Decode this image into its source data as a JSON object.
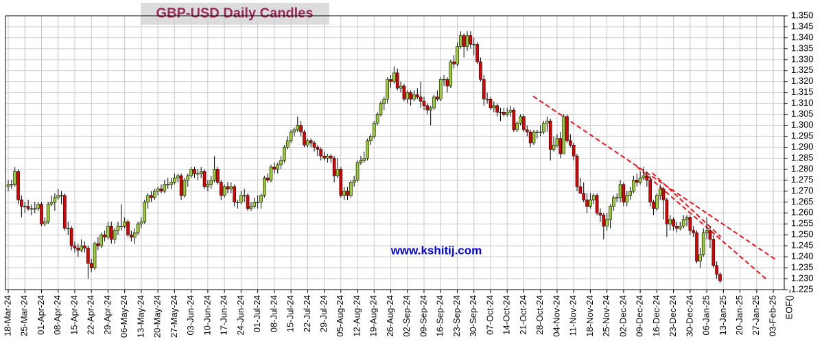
{
  "chart_data": {
    "type": "candlestick",
    "title": "GBP-USD Daily Candles",
    "watermark": "www.kshitij.com",
    "categories": [
      "18-Mar-24",
      "25-Mar-24",
      "01-Apr-24",
      "08-Apr-24",
      "15-Apr-24",
      "22-Apr-24",
      "29-Apr-24",
      "06-May-24",
      "13-May-24",
      "20-May-24",
      "27-May-24",
      "03-Jun-24",
      "10-Jun-24",
      "17-Jun-24",
      "24-Jun-24",
      "01-Jul-24",
      "08-Jul-24",
      "15-Jul-24",
      "22-Jul-24",
      "29-Jul-24",
      "05-Aug-24",
      "12-Aug-24",
      "19-Aug-24",
      "26-Aug-24",
      "02-Sep-24",
      "09-Sep-24",
      "16-Sep-24",
      "23-Sep-24",
      "30-Sep-24",
      "07-Oct-24",
      "14-Oct-24",
      "21-Oct-24",
      "28-Oct-24",
      "04-Nov-24",
      "11-Nov-24",
      "18-Nov-24",
      "25-Nov-24",
      "02-Dec-24",
      "09-Dec-24",
      "16-Dec-24",
      "23-Dec-24",
      "30-Dec-24",
      "06-Jan-25",
      "13-Jan-25",
      "20-Jan-25",
      "27-Jan-25",
      "03-Feb-25",
      "EOF()"
    ],
    "ohlc": [
      [
        1.272,
        1.275,
        1.27,
        1.273
      ],
      [
        1.273,
        1.275,
        1.271,
        1.273
      ],
      [
        1.273,
        1.281,
        1.272,
        1.279
      ],
      [
        1.279,
        1.28,
        1.264,
        1.266
      ],
      [
        1.266,
        1.268,
        1.258,
        1.263
      ],
      [
        1.263,
        1.265,
        1.26,
        1.263
      ],
      [
        1.263,
        1.266,
        1.261,
        1.262
      ],
      [
        1.262,
        1.264,
        1.259,
        1.262
      ],
      [
        1.262,
        1.265,
        1.26,
        1.262
      ],
      [
        1.262,
        1.265,
        1.261,
        1.264
      ],
      [
        1.264,
        1.265,
        1.254,
        1.255
      ],
      [
        1.255,
        1.258,
        1.254,
        1.256
      ],
      [
        1.256,
        1.265,
        1.255,
        1.264
      ],
      [
        1.264,
        1.268,
        1.263,
        1.265
      ],
      [
        1.265,
        1.269,
        1.261,
        1.267
      ],
      [
        1.267,
        1.271,
        1.266,
        1.268
      ],
      [
        1.268,
        1.27,
        1.264,
        1.268
      ],
      [
        1.268,
        1.269,
        1.252,
        1.253
      ],
      [
        1.253,
        1.256,
        1.25,
        1.253
      ],
      [
        1.253,
        1.254,
        1.243,
        1.245
      ],
      [
        1.245,
        1.247,
        1.242,
        1.244
      ],
      [
        1.244,
        1.246,
        1.24,
        1.243
      ],
      [
        1.243,
        1.248,
        1.242,
        1.245
      ],
      [
        1.245,
        1.247,
        1.242,
        1.244
      ],
      [
        1.244,
        1.245,
        1.23,
        1.237
      ],
      [
        1.237,
        1.239,
        1.233,
        1.235
      ],
      [
        1.235,
        1.247,
        1.234,
        1.246
      ],
      [
        1.246,
        1.249,
        1.243,
        1.245
      ],
      [
        1.245,
        1.251,
        1.244,
        1.25
      ],
      [
        1.25,
        1.252,
        1.247,
        1.249
      ],
      [
        1.249,
        1.256,
        1.248,
        1.254
      ],
      [
        1.254,
        1.256,
        1.246,
        1.248
      ],
      [
        1.248,
        1.253,
        1.246,
        1.252
      ],
      [
        1.252,
        1.256,
        1.25,
        1.254
      ],
      [
        1.254,
        1.264,
        1.252,
        1.254
      ],
      [
        1.254,
        1.258,
        1.253,
        1.256
      ],
      [
        1.256,
        1.257,
        1.249,
        1.25
      ],
      [
        1.25,
        1.252,
        1.247,
        1.249
      ],
      [
        1.249,
        1.253,
        1.246,
        1.251
      ],
      [
        1.251,
        1.256,
        1.25,
        1.255
      ],
      [
        1.255,
        1.258,
        1.253,
        1.256
      ],
      [
        1.256,
        1.266,
        1.255,
        1.265
      ],
      [
        1.265,
        1.269,
        1.262,
        1.268
      ],
      [
        1.268,
        1.27,
        1.265,
        1.267
      ],
      [
        1.267,
        1.271,
        1.266,
        1.27
      ],
      [
        1.27,
        1.272,
        1.268,
        1.271
      ],
      [
        1.271,
        1.273,
        1.269,
        1.27
      ],
      [
        1.27,
        1.275,
        1.269,
        1.273
      ],
      [
        1.273,
        1.276,
        1.271,
        1.273
      ],
      [
        1.273,
        1.276,
        1.271,
        1.274
      ],
      [
        1.274,
        1.278,
        1.273,
        1.276
      ],
      [
        1.276,
        1.278,
        1.274,
        1.277
      ],
      [
        1.277,
        1.278,
        1.266,
        1.268
      ],
      [
        1.268,
        1.276,
        1.267,
        1.275
      ],
      [
        1.275,
        1.278,
        1.272,
        1.277
      ],
      [
        1.277,
        1.281,
        1.276,
        1.28
      ],
      [
        1.28,
        1.281,
        1.276,
        1.278
      ],
      [
        1.278,
        1.28,
        1.275,
        1.278
      ],
      [
        1.278,
        1.281,
        1.276,
        1.279
      ],
      [
        1.279,
        1.28,
        1.271,
        1.272
      ],
      [
        1.272,
        1.275,
        1.27,
        1.273
      ],
      [
        1.273,
        1.277,
        1.271,
        1.275
      ],
      [
        1.275,
        1.286,
        1.274,
        1.28
      ],
      [
        1.28,
        1.281,
        1.273,
        1.274
      ],
      [
        1.274,
        1.275,
        1.266,
        1.268
      ],
      [
        1.268,
        1.273,
        1.267,
        1.272
      ],
      [
        1.272,
        1.274,
        1.269,
        1.271
      ],
      [
        1.271,
        1.274,
        1.269,
        1.272
      ],
      [
        1.272,
        1.273,
        1.263,
        1.265
      ],
      [
        1.265,
        1.266,
        1.262,
        1.265
      ],
      [
        1.265,
        1.27,
        1.264,
        1.268
      ],
      [
        1.268,
        1.271,
        1.265,
        1.268
      ],
      [
        1.268,
        1.269,
        1.261,
        1.262
      ],
      [
        1.262,
        1.265,
        1.261,
        1.263
      ],
      [
        1.263,
        1.267,
        1.262,
        1.265
      ],
      [
        1.265,
        1.268,
        1.262,
        1.265
      ],
      [
        1.265,
        1.269,
        1.262,
        1.268
      ],
      [
        1.268,
        1.277,
        1.267,
        1.276
      ],
      [
        1.276,
        1.278,
        1.274,
        1.275
      ],
      [
        1.275,
        1.282,
        1.274,
        1.281
      ],
      [
        1.281,
        1.283,
        1.278,
        1.28
      ],
      [
        1.28,
        1.283,
        1.278,
        1.282
      ],
      [
        1.282,
        1.286,
        1.28,
        1.284
      ],
      [
        1.284,
        1.291,
        1.283,
        1.29
      ],
      [
        1.29,
        1.295,
        1.289,
        1.293
      ],
      [
        1.293,
        1.298,
        1.292,
        1.297
      ],
      [
        1.297,
        1.299,
        1.295,
        1.298
      ],
      [
        1.298,
        1.304,
        1.297,
        1.3
      ],
      [
        1.3,
        1.302,
        1.295,
        1.297
      ],
      [
        1.297,
        1.298,
        1.29,
        1.291
      ],
      [
        1.291,
        1.294,
        1.29,
        1.293
      ],
      [
        1.293,
        1.294,
        1.29,
        1.292
      ],
      [
        1.292,
        1.293,
        1.288,
        1.29
      ],
      [
        1.29,
        1.291,
        1.286,
        1.289
      ],
      [
        1.289,
        1.29,
        1.284,
        1.286
      ],
      [
        1.286,
        1.288,
        1.284,
        1.285
      ],
      [
        1.285,
        1.287,
        1.283,
        1.286
      ],
      [
        1.286,
        1.287,
        1.283,
        1.285
      ],
      [
        1.285,
        1.286,
        1.274,
        1.277
      ],
      [
        1.277,
        1.285,
        1.276,
        1.28
      ],
      [
        1.28,
        1.281,
        1.267,
        1.268
      ],
      [
        1.268,
        1.272,
        1.266,
        1.27
      ],
      [
        1.27,
        1.272,
        1.266,
        1.268
      ],
      [
        1.268,
        1.275,
        1.267,
        1.274
      ],
      [
        1.274,
        1.277,
        1.272,
        1.275
      ],
      [
        1.275,
        1.284,
        1.274,
        1.283
      ],
      [
        1.283,
        1.286,
        1.282,
        1.284
      ],
      [
        1.284,
        1.288,
        1.283,
        1.285
      ],
      [
        1.285,
        1.294,
        1.284,
        1.293
      ],
      [
        1.293,
        1.296,
        1.291,
        1.295
      ],
      [
        1.295,
        1.302,
        1.294,
        1.301
      ],
      [
        1.301,
        1.306,
        1.3,
        1.305
      ],
      [
        1.305,
        1.311,
        1.304,
        1.31
      ],
      [
        1.31,
        1.313,
        1.307,
        1.312
      ],
      [
        1.312,
        1.322,
        1.31,
        1.321
      ],
      [
        1.321,
        1.323,
        1.317,
        1.32
      ],
      [
        1.32,
        1.327,
        1.319,
        1.324
      ],
      [
        1.324,
        1.326,
        1.316,
        1.317
      ],
      [
        1.317,
        1.32,
        1.315,
        1.318
      ],
      [
        1.318,
        1.319,
        1.311,
        1.312
      ],
      [
        1.312,
        1.316,
        1.31,
        1.315
      ],
      [
        1.315,
        1.316,
        1.309,
        1.312
      ],
      [
        1.312,
        1.316,
        1.311,
        1.314
      ],
      [
        1.314,
        1.317,
        1.312,
        1.313
      ],
      [
        1.313,
        1.32,
        1.308,
        1.311
      ],
      [
        1.311,
        1.313,
        1.307,
        1.309
      ],
      [
        1.309,
        1.31,
        1.305,
        1.307
      ],
      [
        1.307,
        1.309,
        1.3,
        1.308
      ],
      [
        1.308,
        1.314,
        1.307,
        1.313
      ],
      [
        1.313,
        1.316,
        1.311,
        1.312
      ],
      [
        1.312,
        1.322,
        1.311,
        1.321
      ],
      [
        1.321,
        1.323,
        1.318,
        1.321
      ],
      [
        1.321,
        1.322,
        1.315,
        1.318
      ],
      [
        1.318,
        1.33,
        1.317,
        1.329
      ],
      [
        1.329,
        1.332,
        1.326,
        1.328
      ],
      [
        1.328,
        1.338,
        1.327,
        1.336
      ],
      [
        1.336,
        1.343,
        1.335,
        1.341
      ],
      [
        1.341,
        1.342,
        1.331,
        1.336
      ],
      [
        1.336,
        1.343,
        1.334,
        1.341
      ],
      [
        1.341,
        1.343,
        1.335,
        1.337
      ],
      [
        1.337,
        1.34,
        1.332,
        1.337
      ],
      [
        1.337,
        1.338,
        1.328,
        1.329
      ],
      [
        1.329,
        1.331,
        1.32,
        1.321
      ],
      [
        1.321,
        1.323,
        1.309,
        1.312
      ],
      [
        1.312,
        1.315,
        1.31,
        1.312
      ],
      [
        1.312,
        1.313,
        1.307,
        1.308
      ],
      [
        1.308,
        1.311,
        1.306,
        1.309
      ],
      [
        1.309,
        1.31,
        1.304,
        1.306
      ],
      [
        1.306,
        1.308,
        1.302,
        1.306
      ],
      [
        1.306,
        1.308,
        1.304,
        1.305
      ],
      [
        1.305,
        1.308,
        1.304,
        1.306
      ],
      [
        1.306,
        1.309,
        1.304,
        1.307
      ],
      [
        1.307,
        1.308,
        1.297,
        1.298
      ],
      [
        1.298,
        1.302,
        1.297,
        1.301
      ],
      [
        1.301,
        1.305,
        1.3,
        1.304
      ],
      [
        1.304,
        1.305,
        1.297,
        1.298
      ],
      [
        1.298,
        1.3,
        1.295,
        1.297
      ],
      [
        1.297,
        1.298,
        1.29,
        1.292
      ],
      [
        1.292,
        1.298,
        1.291,
        1.297
      ],
      [
        1.297,
        1.298,
        1.294,
        1.297
      ],
      [
        1.297,
        1.3,
        1.295,
        1.297
      ],
      [
        1.297,
        1.302,
        1.296,
        1.301
      ],
      [
        1.301,
        1.304,
        1.297,
        1.302
      ],
      [
        1.302,
        1.303,
        1.284,
        1.289
      ],
      [
        1.289,
        1.295,
        1.288,
        1.291
      ],
      [
        1.291,
        1.296,
        1.29,
        1.294
      ],
      [
        1.294,
        1.297,
        1.285,
        1.287
      ],
      [
        1.287,
        1.305,
        1.287,
        1.304
      ],
      [
        1.304,
        1.305,
        1.292,
        1.293
      ],
      [
        1.293,
        1.296,
        1.29,
        1.291
      ],
      [
        1.291,
        1.292,
        1.284,
        1.286
      ],
      [
        1.286,
        1.287,
        1.27,
        1.272
      ],
      [
        1.272,
        1.276,
        1.269,
        1.269
      ],
      [
        1.269,
        1.274,
        1.265,
        1.266
      ],
      [
        1.266,
        1.269,
        1.26,
        1.263
      ],
      [
        1.263,
        1.269,
        1.262,
        1.266
      ],
      [
        1.266,
        1.269,
        1.264,
        1.268
      ],
      [
        1.268,
        1.269,
        1.259,
        1.26
      ],
      [
        1.26,
        1.262,
        1.256,
        1.259
      ],
      [
        1.259,
        1.26,
        1.248,
        1.254
      ],
      [
        1.254,
        1.26,
        1.252,
        1.257
      ],
      [
        1.257,
        1.264,
        1.253,
        1.263
      ],
      [
        1.263,
        1.268,
        1.261,
        1.267
      ],
      [
        1.267,
        1.269,
        1.265,
        1.267
      ],
      [
        1.267,
        1.275,
        1.265,
        1.273
      ],
      [
        1.273,
        1.274,
        1.263,
        1.265
      ],
      [
        1.265,
        1.27,
        1.263,
        1.268
      ],
      [
        1.268,
        1.272,
        1.266,
        1.27
      ],
      [
        1.27,
        1.277,
        1.269,
        1.275
      ],
      [
        1.275,
        1.278,
        1.272,
        1.274
      ],
      [
        1.274,
        1.279,
        1.273,
        1.276
      ],
      [
        1.276,
        1.281,
        1.275,
        1.277
      ],
      [
        1.277,
        1.279,
        1.272,
        1.275
      ],
      [
        1.275,
        1.277,
        1.263,
        1.265
      ],
      [
        1.265,
        1.266,
        1.259,
        1.262
      ],
      [
        1.262,
        1.269,
        1.261,
        1.268
      ],
      [
        1.268,
        1.273,
        1.266,
        1.271
      ],
      [
        1.271,
        1.272,
        1.257,
        1.266
      ],
      [
        1.266,
        1.267,
        1.249,
        1.255
      ],
      [
        1.255,
        1.259,
        1.252,
        1.257
      ],
      [
        1.257,
        1.258,
        1.252,
        1.254
      ],
      [
        1.254,
        1.256,
        1.251,
        1.253
      ],
      [
        1.253,
        1.256,
        1.252,
        1.254
      ],
      [
        1.254,
        1.259,
        1.253,
        1.257
      ],
      [
        1.257,
        1.259,
        1.254,
        1.258
      ],
      [
        1.258,
        1.259,
        1.25,
        1.252
      ],
      [
        1.252,
        1.254,
        1.249,
        1.251
      ],
      [
        1.251,
        1.252,
        1.237,
        1.238
      ],
      [
        1.238,
        1.244,
        1.235,
        1.241
      ],
      [
        1.241,
        1.253,
        1.24,
        1.251
      ],
      [
        1.251,
        1.258,
        1.248,
        1.252
      ],
      [
        1.252,
        1.254,
        1.244,
        1.248
      ],
      [
        1.248,
        1.25,
        1.235,
        1.236
      ],
      [
        1.236,
        1.238,
        1.23,
        1.232
      ],
      [
        1.232,
        1.233,
        1.228,
        1.229
      ]
    ],
    "up_color": "#9acd32",
    "down_color": "#e00000",
    "ylim": [
      1.225,
      1.35
    ],
    "yticks": [
      1.225,
      {
        "value": 1.23,
        "label": "1.230"
      },
      1.235,
      {
        "value": 1.24,
        "label": "1.240"
      },
      1.245,
      {
        "value": 1.25,
        "label": "1.250"
      },
      1.255,
      {
        "value": 1.26,
        "label": "1.260"
      },
      1.265,
      {
        "value": 1.27,
        "label": "1.270"
      },
      1.275,
      {
        "value": 1.28,
        "label": "1.280"
      },
      1.285,
      {
        "value": 1.29,
        "label": "1.290"
      },
      1.295,
      {
        "value": 1.3,
        "label": "1.300"
      },
      1.305,
      {
        "value": 1.31,
        "label": "1.310"
      },
      1.315,
      {
        "value": 1.32,
        "label": "1.320"
      },
      1.325,
      {
        "value": 1.33,
        "label": "1.330"
      },
      1.335,
      {
        "value": 1.34,
        "label": "1.340"
      },
      1.345,
      {
        "value": 1.35,
        "label": "1.350"
      }
    ],
    "grid": true,
    "trendline_color": "#e8141e",
    "trendlines": [
      {
        "start": [
          157.8,
          1.3133
        ],
        "end": [
          231.2,
          1.2382
        ]
      },
      {
        "start": [
          189,
          1.2811
        ],
        "end": [
          228.2,
          1.2294
        ]
      },
      {
        "start": [
          193.6,
          1.2783
        ],
        "end": [
          214.2,
          1.2491
        ]
      }
    ]
  }
}
